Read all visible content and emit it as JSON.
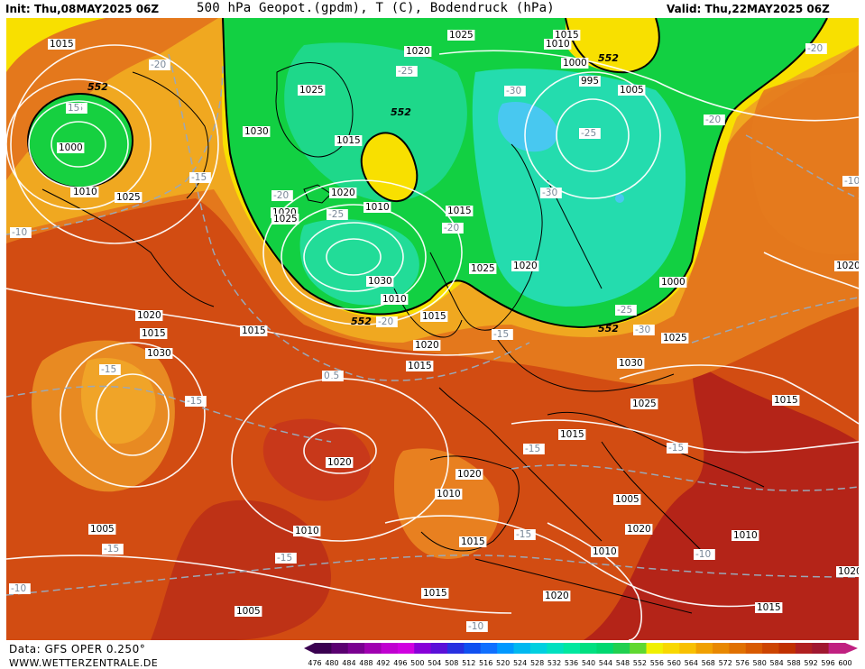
{
  "header": {
    "init": "Init: Thu,08MAY2025 06Z",
    "title": "500 hPa Geopot.(gpdm), T (C), Bodendruck (hPa)",
    "valid": "Valid: Thu,22MAY2025 06Z"
  },
  "footer": {
    "source": "Data: GFS OPER 0.250°",
    "website": "WWW.WETTERZENTRALE.DE"
  },
  "legend": {
    "ticks": [
      "476",
      "480",
      "484",
      "488",
      "492",
      "496",
      "500",
      "504",
      "508",
      "512",
      "516",
      "520",
      "524",
      "528",
      "532",
      "536",
      "540",
      "544",
      "548",
      "552",
      "556",
      "560",
      "564",
      "568",
      "572",
      "576",
      "580",
      "584",
      "588",
      "592",
      "596",
      "600"
    ],
    "colors": [
      "#3a0050",
      "#5a0070",
      "#7a0090",
      "#a000b0",
      "#c000d0",
      "#d000e0",
      "#8800d8",
      "#5a10d8",
      "#2830e0",
      "#1050f0",
      "#1070ff",
      "#0098ff",
      "#00b8f0",
      "#00d0e0",
      "#00e0c0",
      "#00e8a0",
      "#00e080",
      "#00d870",
      "#20d050",
      "#60d830",
      "#f0f000",
      "#f8d800",
      "#f8c000",
      "#f0a000",
      "#e88800",
      "#e07000",
      "#d85a00",
      "#cc4400",
      "#c03000",
      "#b02020",
      "#a01830",
      "#c02080"
    ]
  },
  "map": {
    "colors": {
      "deep_orange": "#c83c0e",
      "orange": "#e0721a",
      "amber": "#f0a020",
      "yellow": "#f8e000",
      "green": "#10d040",
      "teal": "#20d8a0",
      "cyan": "#40c8f0",
      "red": "#a81a1a",
      "isobar": "#ffffff",
      "isotherm": "#9aa8b8"
    },
    "pressure_labels": [
      "1015",
      "1025",
      "1015",
      "1020",
      "1010",
      "1000",
      "995",
      "1005",
      "1000",
      "1025",
      "1030",
      "1015",
      "1020",
      "1025",
      "1020",
      "1010",
      "1015",
      "1025",
      "1020",
      "1030",
      "1010",
      "1015",
      "1000",
      "1005",
      "1010",
      "1025",
      "1020",
      "1015",
      "1030",
      "1015",
      "1020",
      "1020",
      "1015",
      "1030",
      "1025",
      "1020",
      "1015",
      "1025",
      "1015",
      "1020",
      "1010",
      "1005",
      "1020",
      "1015",
      "1010",
      "1010",
      "1020",
      "1015",
      "1005",
      "1010",
      "1005",
      "1020",
      "1015"
    ],
    "temperature_labels": [
      "-20",
      "-15",
      "-15",
      "-25",
      "-30",
      "-25",
      "-20",
      "-20",
      "-15",
      "-20",
      "-25",
      "-30",
      "-20",
      "-15",
      "-20",
      "-25",
      "-30",
      "-15",
      "-15",
      "-15",
      "-15",
      "-15",
      "-15",
      "-15",
      "-15",
      "-10",
      "-10",
      "-10",
      "-10",
      "-10",
      "15",
      "0"
    ],
    "height_labels": [
      "552",
      "552",
      "552",
      "552",
      "552"
    ]
  }
}
